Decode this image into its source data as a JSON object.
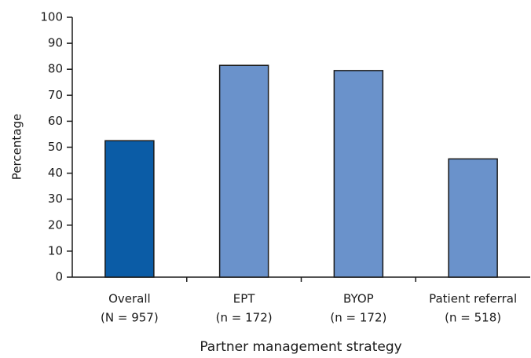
{
  "chart_data": {
    "type": "bar",
    "x_label": "Partner management strategy",
    "y_label": "Percentage",
    "categories": [
      [
        "Overall",
        "(N = 957)"
      ],
      [
        "EPT",
        "(n = 172)"
      ],
      [
        "BYOP",
        "(n = 172)"
      ],
      [
        "Patient referral",
        "(n = 518)"
      ]
    ],
    "values": [
      52.5,
      81.5,
      79.5,
      45.5
    ],
    "colors": [
      "#0b5ca6",
      "#6a92cb",
      "#6a92cb",
      "#6a92cb"
    ],
    "ylim": [
      0,
      100
    ],
    "yticks": [
      0,
      10,
      20,
      30,
      40,
      50,
      60,
      70,
      80,
      90,
      100
    ]
  }
}
